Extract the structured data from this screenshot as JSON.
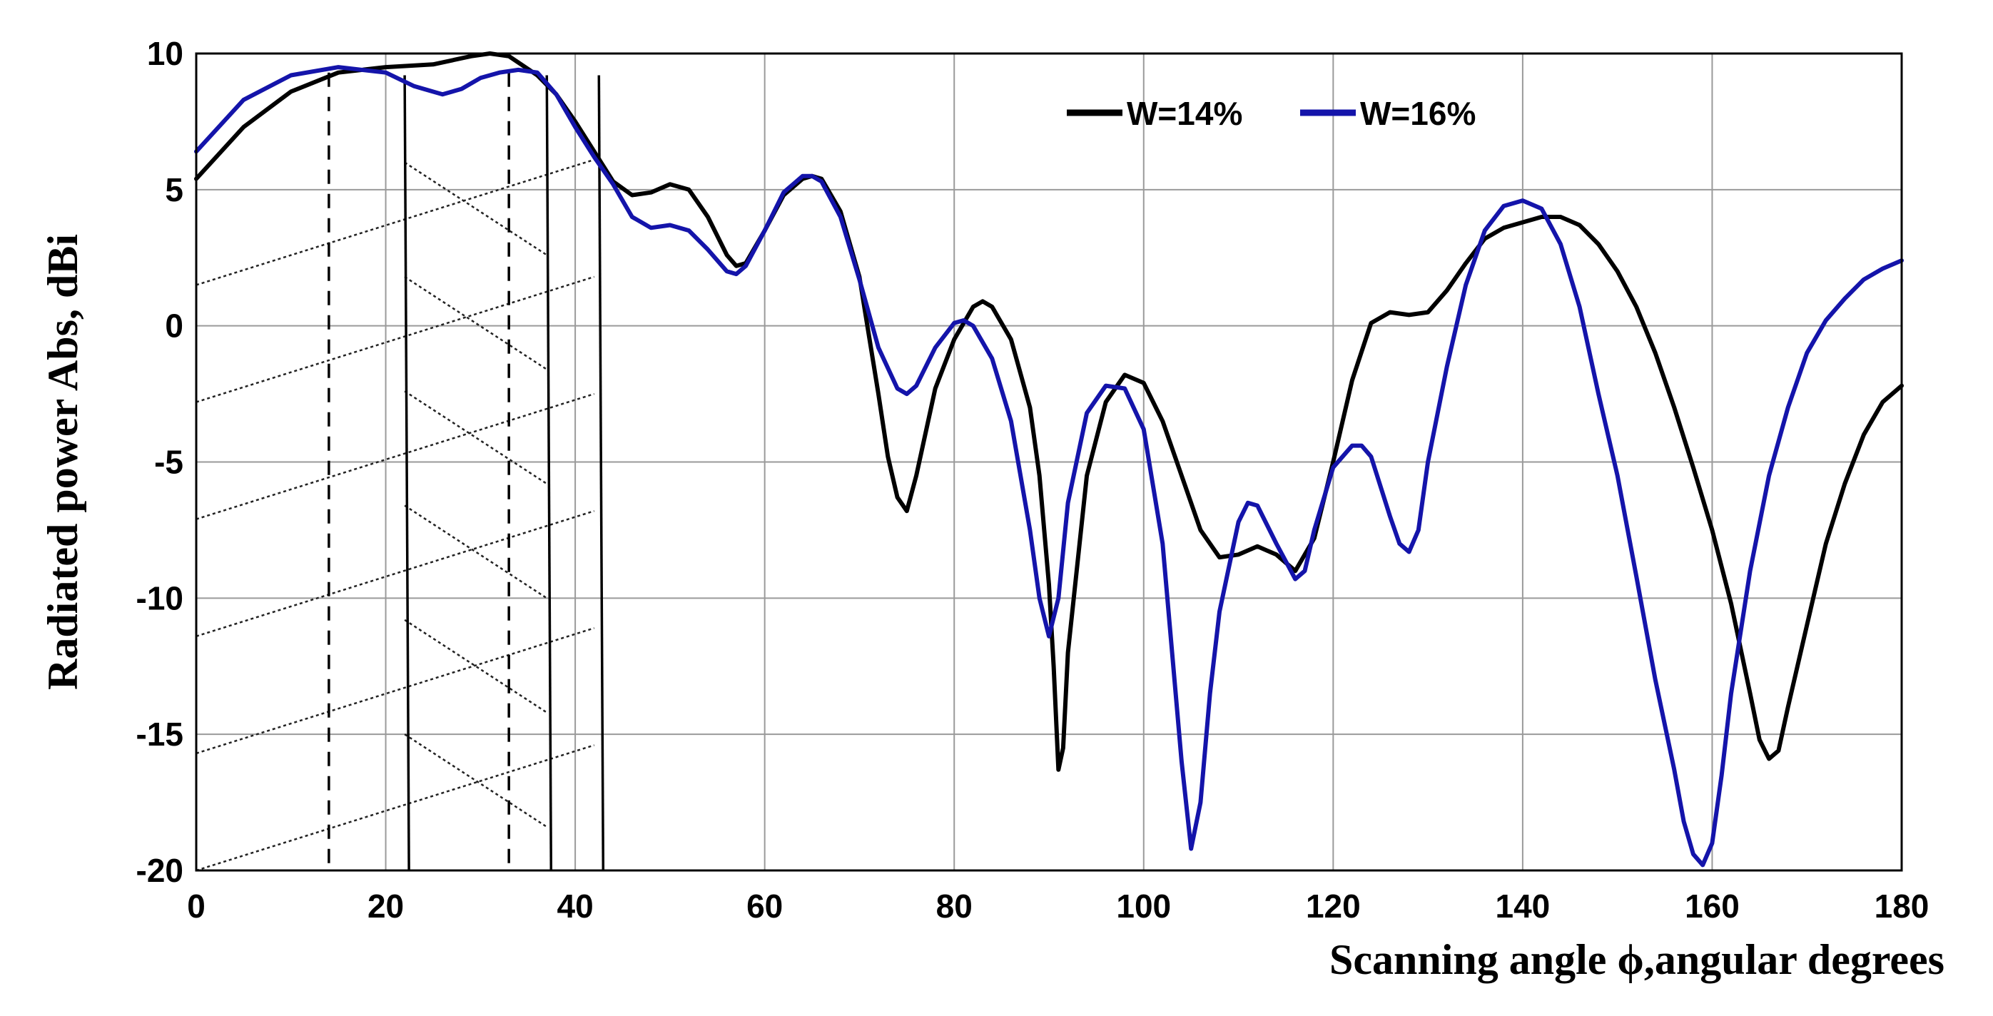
{
  "chart_data": {
    "type": "line",
    "title": "",
    "xlabel": "Scanning angle ϕ,angular degrees",
    "ylabel": "Radiated power Abs, dBi",
    "xlim": [
      0,
      180
    ],
    "ylim": [
      -20,
      10
    ],
    "x_ticks": [
      0,
      20,
      40,
      60,
      80,
      100,
      120,
      140,
      160,
      180
    ],
    "y_ticks": [
      10,
      5,
      0,
      -5,
      -10,
      -15,
      -20
    ],
    "x_tick_labels": [
      "0",
      "20",
      "40",
      "60",
      "80",
      "100",
      "120",
      "140",
      "160",
      "180"
    ],
    "y_tick_labels": [
      "10",
      "5",
      "0",
      "-5",
      "-10",
      "-15",
      "-20"
    ],
    "grid": true,
    "legend_position": "top-right",
    "series": [
      {
        "name": "W=14%",
        "color": "#000000",
        "x": [
          0,
          5,
          10,
          15,
          20,
          25,
          29,
          31,
          33,
          36,
          38,
          40,
          42,
          44,
          46,
          48,
          50,
          52,
          54,
          56,
          57,
          58,
          60,
          62,
          64,
          65,
          66,
          68,
          70,
          72,
          73,
          74,
          75,
          76,
          78,
          80,
          82,
          83,
          84,
          86,
          88,
          89,
          90,
          90.5,
          91,
          91.5,
          92,
          94,
          96,
          98,
          100,
          102,
          104,
          106,
          108,
          110,
          112,
          114,
          116,
          118,
          120,
          122,
          124,
          126,
          128,
          130,
          132,
          134,
          136,
          138,
          140,
          142,
          144,
          146,
          148,
          150,
          152,
          154,
          156,
          158,
          160,
          162,
          164,
          165,
          166,
          167,
          168,
          170,
          172,
          174,
          176,
          178,
          180
        ],
        "y": [
          5.4,
          7.3,
          8.6,
          9.3,
          9.5,
          9.6,
          9.9,
          10.0,
          9.9,
          9.2,
          8.5,
          7.5,
          6.4,
          5.3,
          4.8,
          4.9,
          5.2,
          5.0,
          4.0,
          2.6,
          2.2,
          2.3,
          3.5,
          4.8,
          5.4,
          5.5,
          5.4,
          4.2,
          1.8,
          -2.5,
          -4.8,
          -6.3,
          -6.8,
          -5.5,
          -2.3,
          -0.5,
          0.7,
          0.9,
          0.7,
          -0.5,
          -3.0,
          -5.5,
          -9.5,
          -12.5,
          -16.3,
          -15.5,
          -12.0,
          -5.5,
          -2.8,
          -1.8,
          -2.1,
          -3.5,
          -5.5,
          -7.5,
          -8.5,
          -8.4,
          -8.1,
          -8.4,
          -9.0,
          -7.8,
          -5.0,
          -2.0,
          0.1,
          0.5,
          0.4,
          0.5,
          1.3,
          2.3,
          3.2,
          3.6,
          3.8,
          4.0,
          4.0,
          3.7,
          3.0,
          2.0,
          0.7,
          -1.0,
          -3.0,
          -5.2,
          -7.5,
          -10.2,
          -13.5,
          -15.2,
          -15.9,
          -15.6,
          -14.0,
          -11.0,
          -8.0,
          -5.8,
          -4.0,
          -2.8,
          -2.2
        ]
      },
      {
        "name": "W=16%",
        "color": "#1414aa",
        "x": [
          0,
          5,
          10,
          15,
          20,
          23,
          26,
          28,
          30,
          32,
          34,
          36,
          38,
          40,
          42,
          44,
          46,
          48,
          50,
          52,
          54,
          56,
          57,
          58,
          60,
          62,
          64,
          65,
          66,
          68,
          70,
          72,
          74,
          75,
          76,
          78,
          80,
          81,
          82,
          84,
          86,
          88,
          89,
          90,
          91,
          92,
          94,
          96,
          98,
          100,
          102,
          103,
          104,
          105,
          106,
          107,
          108,
          110,
          111,
          112,
          114,
          116,
          117,
          118,
          120,
          122,
          123,
          124,
          126,
          127,
          128,
          129,
          130,
          132,
          134,
          136,
          138,
          140,
          142,
          144,
          146,
          148,
          150,
          152,
          154,
          156,
          157,
          158,
          159,
          160,
          161,
          162,
          164,
          166,
          168,
          170,
          172,
          174,
          176,
          178,
          180
        ],
        "y": [
          6.4,
          8.3,
          9.2,
          9.5,
          9.3,
          8.8,
          8.5,
          8.7,
          9.1,
          9.3,
          9.4,
          9.3,
          8.5,
          7.3,
          6.2,
          5.2,
          4.0,
          3.6,
          3.7,
          3.5,
          2.8,
          2.0,
          1.9,
          2.2,
          3.5,
          4.9,
          5.5,
          5.5,
          5.3,
          4.0,
          1.7,
          -0.8,
          -2.3,
          -2.5,
          -2.2,
          -0.8,
          0.1,
          0.2,
          0.0,
          -1.2,
          -3.5,
          -7.5,
          -10.0,
          -11.4,
          -10.0,
          -6.5,
          -3.2,
          -2.2,
          -2.3,
          -3.8,
          -8.0,
          -12.0,
          -16.0,
          -19.2,
          -17.5,
          -13.5,
          -10.5,
          -7.2,
          -6.5,
          -6.6,
          -8.0,
          -9.3,
          -9.0,
          -7.5,
          -5.2,
          -4.4,
          -4.4,
          -4.8,
          -7.0,
          -8.0,
          -8.3,
          -7.5,
          -5.0,
          -1.5,
          1.5,
          3.5,
          4.4,
          4.6,
          4.3,
          3.0,
          0.7,
          -2.5,
          -5.5,
          -9.2,
          -13.0,
          -16.3,
          -18.2,
          -19.4,
          -19.8,
          -19.0,
          -16.5,
          -13.5,
          -9.0,
          -5.5,
          -3.0,
          -1.0,
          0.2,
          1.0,
          1.7,
          2.1,
          2.4
        ]
      }
    ],
    "annotations": {
      "dashed_verticals_x": [
        14,
        33
      ],
      "solid_verticals_x": [
        22,
        37,
        42.5
      ],
      "hatched_region": [
        0,
        42
      ]
    }
  }
}
